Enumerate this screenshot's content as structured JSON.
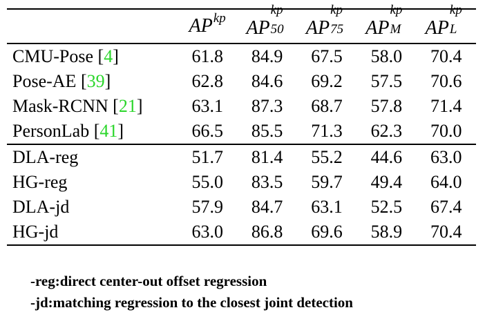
{
  "table": {
    "headers": [
      {
        "base": "AP",
        "sup": "kp",
        "sub": ""
      },
      {
        "base": "AP",
        "sup": "kp",
        "sub": "50"
      },
      {
        "base": "AP",
        "sup": "kp",
        "sub": "75"
      },
      {
        "base": "AP",
        "sup": "kp",
        "sub": "M"
      },
      {
        "base": "AP",
        "sup": "kp",
        "sub": "L"
      }
    ],
    "rows": [
      {
        "method": "CMU-Pose",
        "cite": "4",
        "values": [
          "61.8",
          "84.9",
          "67.5",
          "58.0",
          "70.4"
        ]
      },
      {
        "method": "Pose-AE",
        "cite": "39",
        "values": [
          "62.8",
          "84.6",
          "69.2",
          "57.5",
          "70.6"
        ]
      },
      {
        "method": "Mask-RCNN",
        "cite": "21",
        "values": [
          "63.1",
          "87.3",
          "68.7",
          "57.8",
          "71.4"
        ]
      },
      {
        "method": "PersonLab",
        "cite": "41",
        "values": [
          "66.5",
          "85.5",
          "71.3",
          "62.3",
          "70.0"
        ]
      },
      {
        "method": "DLA-reg",
        "cite": "",
        "values": [
          "51.7",
          "81.4",
          "55.2",
          "44.6",
          "63.0"
        ]
      },
      {
        "method": "HG-reg",
        "cite": "",
        "values": [
          "55.0",
          "83.5",
          "59.7",
          "49.4",
          "64.0"
        ]
      },
      {
        "method": "DLA-jd",
        "cite": "",
        "values": [
          "57.9",
          "84.7",
          "63.1",
          "52.5",
          "67.4"
        ]
      },
      {
        "method": "HG-jd",
        "cite": "",
        "values": [
          "63.0",
          "86.8",
          "69.6",
          "58.9",
          "70.4"
        ]
      }
    ]
  },
  "notes": [
    "-reg:direct center-out offset regression",
    "-jd:matching regression to the closest joint detection"
  ],
  "colors": {
    "citation": "#2bd62b",
    "text": "#000000",
    "rules": "#000000"
  }
}
